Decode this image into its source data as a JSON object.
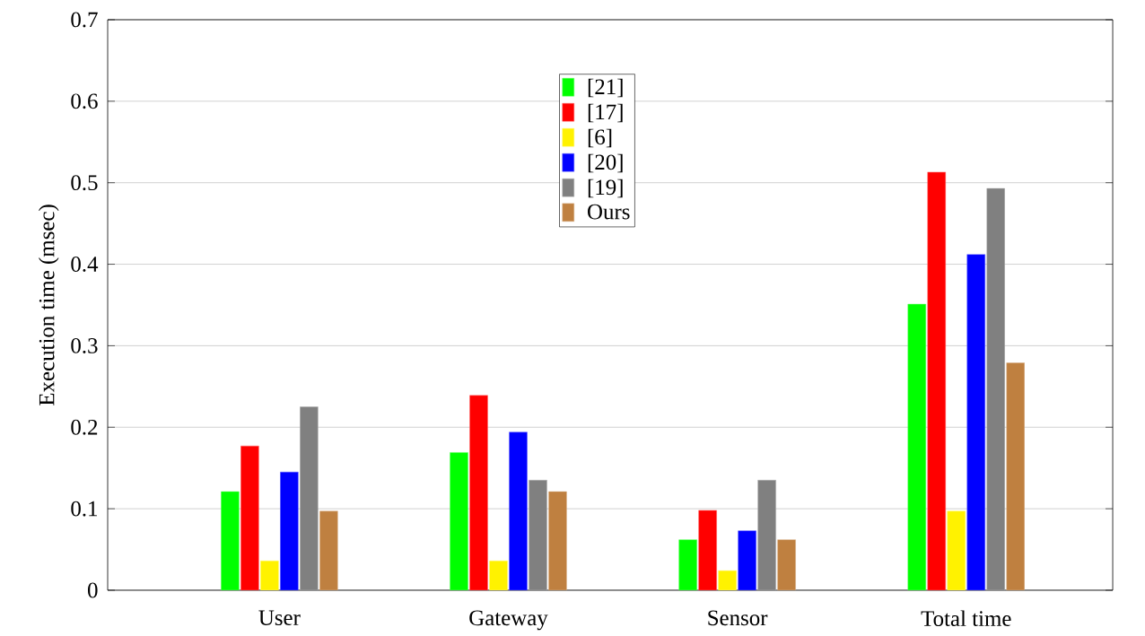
{
  "chart_data": {
    "type": "bar",
    "ylabel": "Execution time (msec)",
    "categories": [
      "User",
      "Gateway",
      "Sensor",
      "Total time"
    ],
    "series": [
      {
        "name": "[21]",
        "color": "#00ff00",
        "values": [
          0.121,
          0.169,
          0.062,
          0.351
        ]
      },
      {
        "name": "[17]",
        "color": "#ff0000",
        "values": [
          0.177,
          0.239,
          0.098,
          0.513
        ]
      },
      {
        "name": "[6]",
        "color": "#fff200",
        "values": [
          0.036,
          0.036,
          0.024,
          0.097
        ]
      },
      {
        "name": "[20]",
        "color": "#0000ff",
        "values": [
          0.145,
          0.194,
          0.073,
          0.412
        ]
      },
      {
        "name": "[19]",
        "color": "#808080",
        "values": [
          0.225,
          0.135,
          0.135,
          0.493
        ]
      },
      {
        "name": "Ours",
        "color": "#bf8040",
        "values": [
          0.097,
          0.121,
          0.062,
          0.279
        ]
      }
    ],
    "ylim": [
      0,
      0.7
    ],
    "yticks": [
      0,
      0.1,
      0.2,
      0.3,
      0.4,
      0.5,
      0.6,
      0.7
    ],
    "grid": "y",
    "legend": "top"
  }
}
